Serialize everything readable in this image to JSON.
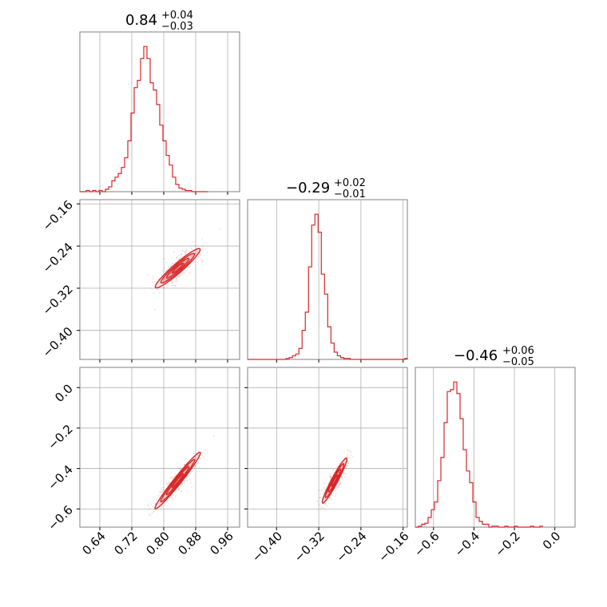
{
  "colors": {
    "series": "#d62728",
    "grid": "#b0b0b0",
    "frame": "#808080"
  },
  "chart_data": {
    "type": "corner",
    "grid": true,
    "titles": [
      {
        "value": "0.84",
        "plus": "+0.04",
        "minus": "−0.03"
      },
      {
        "value": "−0.29",
        "plus": "+0.02",
        "minus": "−0.01"
      },
      {
        "value": "−0.46",
        "plus": "+0.06",
        "minus": "−0.05"
      }
    ],
    "params": [
      {
        "range": [
          0.59,
          0.99
        ],
        "ticks": [
          0.64,
          0.72,
          0.8,
          0.88,
          0.96
        ],
        "tick_labels": [
          "0.64",
          "0.72",
          "0.80",
          "0.88",
          "0.96"
        ]
      },
      {
        "range": [
          -0.455,
          -0.152
        ],
        "ticks": [
          -0.4,
          -0.32,
          -0.24,
          -0.16
        ],
        "tick_labels": [
          "−0.40",
          "−0.32",
          "−0.24",
          "−0.16"
        ]
      },
      {
        "range": [
          -0.69,
          0.1
        ],
        "ticks": [
          -0.6,
          -0.4,
          -0.2,
          0.0
        ],
        "tick_labels": [
          "−0.6",
          "−0.4",
          "−0.2",
          "0.0"
        ]
      }
    ],
    "histograms": [
      {
        "param": 0,
        "bins_start": 0.59,
        "bin_width": 0.008,
        "counts": [
          0,
          0,
          1,
          0,
          1,
          0,
          1,
          0,
          2,
          4,
          9,
          12,
          15,
          20,
          28,
          42,
          65,
          86,
          92,
          110,
          120,
          110,
          90,
          84,
          72,
          55,
          42,
          30,
          22,
          12,
          6,
          3,
          2,
          1,
          1,
          0,
          0,
          0,
          0,
          0
        ]
      },
      {
        "param": 1,
        "bins_start": -0.455,
        "bin_width": 0.00608,
        "counts": [
          0,
          0,
          0,
          0,
          0,
          0,
          0,
          0,
          0,
          0,
          0,
          0,
          1,
          2,
          4,
          6,
          12,
          32,
          52,
          102,
          148,
          160,
          140,
          94,
          72,
          36,
          18,
          8,
          4,
          2,
          1,
          1,
          0,
          0,
          0,
          0,
          0,
          0,
          0,
          0,
          0,
          0,
          0,
          0,
          0,
          0,
          0,
          0,
          0,
          1
        ]
      },
      {
        "param": 2,
        "bins_start": -0.69,
        "bin_width": 0.0158,
        "counts": [
          0,
          1,
          3,
          4,
          10,
          18,
          26,
          48,
          72,
          108,
          140,
          142,
          150,
          138,
          112,
          80,
          58,
          46,
          26,
          10,
          6,
          3,
          3,
          0,
          1,
          1,
          0,
          0,
          1,
          0,
          0,
          1,
          0,
          0,
          0,
          0,
          1,
          0,
          0,
          1
        ]
      }
    ],
    "pairs": [
      {
        "x": 0,
        "y": 1,
        "center": [
          0.835,
          -0.282
        ],
        "direction": [
          0.04,
          0.026
        ],
        "width": 0.009,
        "contour_levels": [
          0.5,
          1.0,
          1.5,
          2.0
        ]
      },
      {
        "x": 0,
        "y": 2,
        "center": [
          0.835,
          -0.46
        ],
        "direction": [
          0.04,
          0.1
        ],
        "width": 0.01,
        "contour_levels": [
          0.5,
          1.0,
          1.5,
          2.0
        ]
      },
      {
        "x": 1,
        "y": 2,
        "center": [
          -0.29,
          -0.46
        ],
        "direction": [
          0.016,
          0.08
        ],
        "width": 0.006,
        "contour_levels": [
          0.5,
          1.0,
          1.5,
          2.0
        ]
      }
    ]
  }
}
